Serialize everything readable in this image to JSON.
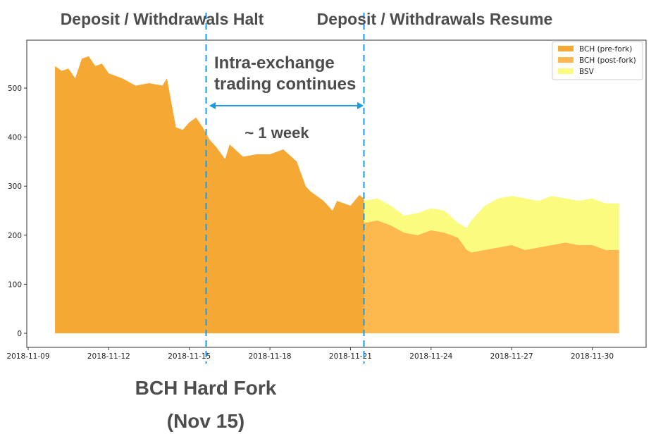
{
  "chart_data": {
    "type": "area",
    "stacked": true,
    "title": "",
    "xlabel": "",
    "ylabel": "",
    "x_type": "date",
    "xlim": [
      "2018-11-09",
      "2018-12-02"
    ],
    "ylim": [
      -25,
      600
    ],
    "x_ticks": [
      "2018-11-09",
      "2018-11-12",
      "2018-11-15",
      "2018-11-18",
      "2018-11-21",
      "2018-11-24",
      "2018-11-27",
      "2018-11-30"
    ],
    "y_ticks": [
      0,
      100,
      200,
      300,
      400,
      500
    ],
    "grid": false,
    "legend_position": "top-right",
    "series": [
      {
        "name": "BCH (pre-fork)",
        "color": "#f5a833",
        "points": [
          [
            "2018-11-10T00",
            545
          ],
          [
            "2018-11-10T06",
            535
          ],
          [
            "2018-11-10T12",
            540
          ],
          [
            "2018-11-10T18",
            520
          ],
          [
            "2018-11-11T00",
            560
          ],
          [
            "2018-11-11T06",
            565
          ],
          [
            "2018-11-11T12",
            545
          ],
          [
            "2018-11-11T18",
            550
          ],
          [
            "2018-11-12T00",
            530
          ],
          [
            "2018-11-12T12",
            520
          ],
          [
            "2018-11-13T00",
            505
          ],
          [
            "2018-11-13T12",
            510
          ],
          [
            "2018-11-14T00",
            505
          ],
          [
            "2018-11-14T04",
            520
          ],
          [
            "2018-11-14T08",
            470
          ],
          [
            "2018-11-14T12",
            420
          ],
          [
            "2018-11-14T18",
            415
          ],
          [
            "2018-11-15T00",
            430
          ],
          [
            "2018-11-15T06",
            440
          ],
          [
            "2018-11-15T12",
            420
          ],
          [
            "2018-11-15T18",
            395
          ],
          [
            "2018-11-16T00",
            380
          ],
          [
            "2018-11-16T08",
            355
          ],
          [
            "2018-11-16T12",
            385
          ],
          [
            "2018-11-17T00",
            360
          ],
          [
            "2018-11-17T12",
            365
          ],
          [
            "2018-11-18T00",
            365
          ],
          [
            "2018-11-18T12",
            375
          ],
          [
            "2018-11-19T00",
            350
          ],
          [
            "2018-11-19T08",
            300
          ],
          [
            "2018-11-19T12",
            290
          ],
          [
            "2018-11-20T00",
            270
          ],
          [
            "2018-11-20T08",
            250
          ],
          [
            "2018-11-20T12",
            270
          ],
          [
            "2018-11-21T00",
            260
          ],
          [
            "2018-11-21T08",
            282
          ],
          [
            "2018-11-21T12",
            275
          ]
        ]
      },
      {
        "name": "BCH (post-fork)",
        "color": "#fdb94e",
        "points": [
          [
            "2018-11-21T12",
            225
          ],
          [
            "2018-11-22T00",
            230
          ],
          [
            "2018-11-22T12",
            220
          ],
          [
            "2018-11-23T00",
            205
          ],
          [
            "2018-11-23T12",
            200
          ],
          [
            "2018-11-24T00",
            210
          ],
          [
            "2018-11-24T12",
            205
          ],
          [
            "2018-11-25T00",
            195
          ],
          [
            "2018-11-25T08",
            170
          ],
          [
            "2018-11-25T12",
            165
          ],
          [
            "2018-11-26T00",
            170
          ],
          [
            "2018-11-26T12",
            175
          ],
          [
            "2018-11-27T00",
            180
          ],
          [
            "2018-11-27T12",
            170
          ],
          [
            "2018-11-28T00",
            175
          ],
          [
            "2018-11-28T12",
            180
          ],
          [
            "2018-11-29T00",
            185
          ],
          [
            "2018-11-29T12",
            180
          ],
          [
            "2018-11-30T00",
            180
          ],
          [
            "2018-11-30T12",
            170
          ],
          [
            "2018-12-01T00",
            170
          ]
        ]
      },
      {
        "name": "BSV",
        "color": "#fbfb80",
        "points": [
          [
            "2018-11-21T12",
            45
          ],
          [
            "2018-11-22T00",
            45
          ],
          [
            "2018-11-22T12",
            40
          ],
          [
            "2018-11-23T00",
            35
          ],
          [
            "2018-11-23T12",
            45
          ],
          [
            "2018-11-24T00",
            45
          ],
          [
            "2018-11-24T12",
            45
          ],
          [
            "2018-11-25T00",
            30
          ],
          [
            "2018-11-25T08",
            45
          ],
          [
            "2018-11-25T12",
            65
          ],
          [
            "2018-11-26T00",
            90
          ],
          [
            "2018-11-26T12",
            100
          ],
          [
            "2018-11-27T00",
            100
          ],
          [
            "2018-11-27T12",
            105
          ],
          [
            "2018-11-28T00",
            95
          ],
          [
            "2018-11-28T12",
            100
          ],
          [
            "2018-11-29T00",
            90
          ],
          [
            "2018-11-29T12",
            90
          ],
          [
            "2018-11-30T00",
            95
          ],
          [
            "2018-11-30T12",
            95
          ],
          [
            "2018-12-01T00",
            95
          ]
        ]
      }
    ],
    "vlines": [
      {
        "x": "2018-11-15T15",
        "color": "#1a9be6",
        "style": "dashed"
      },
      {
        "x": "2018-11-21T12",
        "color": "#1a9be6",
        "style": "dashed"
      }
    ],
    "annotations": {
      "halt": "Deposit / Withdrawals Halt",
      "resume": "Deposit / Withdrawals Resume",
      "intra_line1": "Intra-exchange",
      "intra_line2": "trading continues",
      "duration": "~ 1 week",
      "fork_line1": "BCH Hard Fork",
      "fork_line2": "(Nov 15)"
    }
  }
}
